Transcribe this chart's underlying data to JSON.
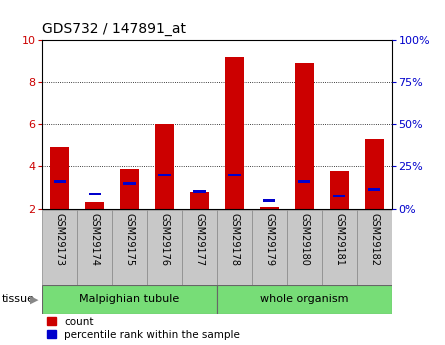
{
  "title": "GDS732 / 147891_at",
  "samples": [
    "GSM29173",
    "GSM29174",
    "GSM29175",
    "GSM29176",
    "GSM29177",
    "GSM29178",
    "GSM29179",
    "GSM29180",
    "GSM29181",
    "GSM29182"
  ],
  "red_values": [
    4.9,
    2.3,
    3.9,
    6.0,
    2.8,
    9.2,
    2.1,
    8.9,
    3.8,
    5.3
  ],
  "blue_values": [
    3.3,
    2.7,
    3.2,
    3.6,
    2.8,
    3.6,
    2.4,
    3.3,
    2.6,
    2.9
  ],
  "baseline": 2.0,
  "ylim": [
    2,
    10
  ],
  "yticks_left": [
    2,
    4,
    6,
    8,
    10
  ],
  "yticks_right": [
    0,
    25,
    50,
    75,
    100
  ],
  "bar_color_red": "#cc0000",
  "bar_color_blue": "#0000cc",
  "ylabel_left_color": "#cc0000",
  "ylabel_right_color": "#0000cc",
  "group1_label": "Malpighian tubule",
  "group2_label": "whole organism",
  "group1_count": 5,
  "group2_count": 5,
  "tissue_label": "tissue",
  "legend_count": "count",
  "legend_percentile": "percentile rank within the sample",
  "bg_plot": "#ffffff",
  "bg_gray": "#c8c8c8",
  "bg_green": "#77dd77",
  "bar_width": 0.55,
  "blue_bar_width": 0.35,
  "blue_bar_height": 0.13
}
